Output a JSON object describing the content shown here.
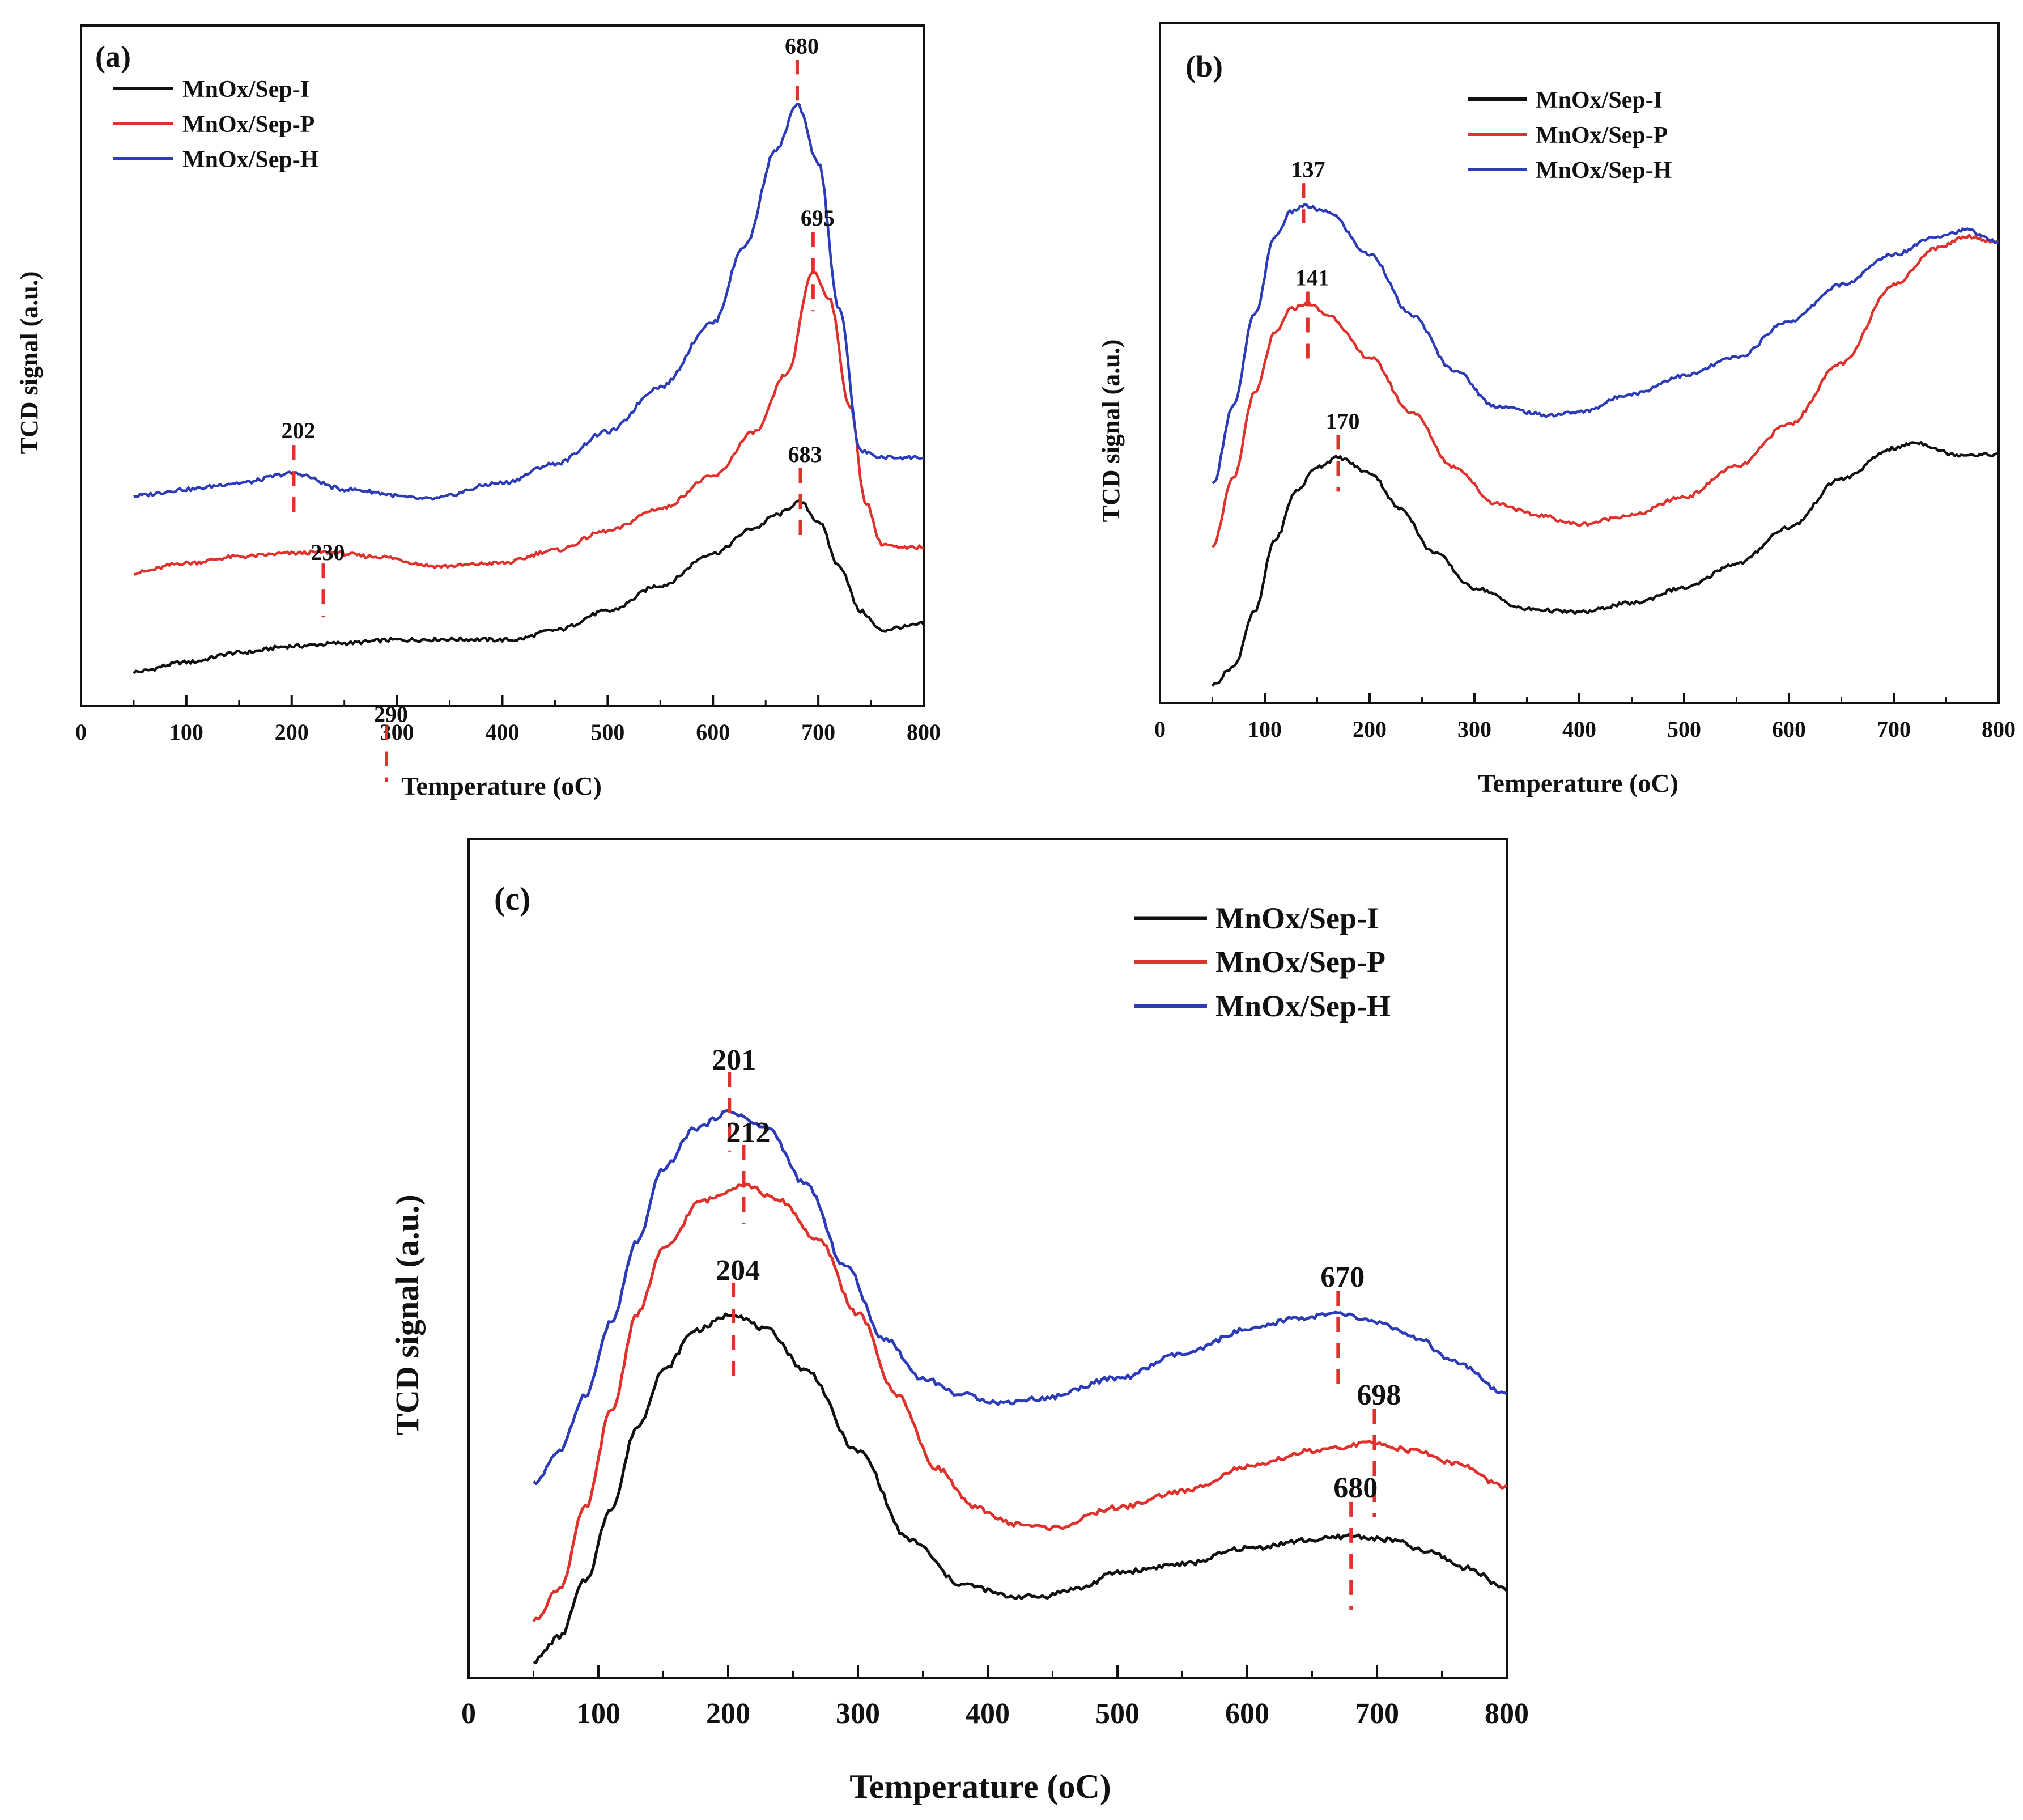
{
  "figure": {
    "background": "#ffffff",
    "marker_color": "#e0322d"
  },
  "legend_entries": [
    "MnOx/Sep-I",
    "MnOx/Sep-P",
    "MnOx/Sep-H"
  ],
  "chart_data": [
    {
      "panel_label": "(a)",
      "type": "line",
      "xlabel": "Temperature (oC)",
      "ylabel": "TCD signal (a.u.)",
      "xlim": [
        0,
        800
      ],
      "ylim": [
        0,
        1
      ],
      "xticks": [
        0,
        100,
        200,
        300,
        400,
        500,
        600,
        700,
        800
      ],
      "legend_position": "top-left",
      "series": [
        {
          "name": "MnOx/Sep-I",
          "color": "#111111",
          "x": [
            50,
            100,
            150,
            200,
            250,
            300,
            350,
            410,
            450,
            500,
            550,
            600,
            640,
            660,
            683,
            700,
            720,
            740,
            760,
            780,
            800
          ],
          "y": [
            0.035,
            0.05,
            0.065,
            0.075,
            0.08,
            0.085,
            0.086,
            0.085,
            0.1,
            0.13,
            0.17,
            0.22,
            0.26,
            0.28,
            0.3,
            0.27,
            0.2,
            0.13,
            0.1,
            0.105,
            0.11
          ]
        },
        {
          "name": "MnOx/Sep-P",
          "color": "#e0322d",
          "x": [
            50,
            100,
            150,
            200,
            230,
            280,
            340,
            400,
            450,
            500,
            550,
            600,
            640,
            670,
            695,
            710,
            730,
            745,
            760,
            780,
            800
          ],
          "y": [
            0.19,
            0.205,
            0.215,
            0.22,
            0.222,
            0.215,
            0.2,
            0.205,
            0.225,
            0.255,
            0.29,
            0.34,
            0.41,
            0.5,
            0.66,
            0.62,
            0.45,
            0.3,
            0.235,
            0.228,
            0.23
          ]
        },
        {
          "name": "MnOx/Sep-H",
          "color": "#2c3cb8",
          "x": [
            50,
            100,
            150,
            202,
            250,
            330,
            400,
            450,
            500,
            550,
            600,
            630,
            660,
            680,
            700,
            720,
            740,
            760,
            780,
            800
          ],
          "y": [
            0.31,
            0.32,
            0.33,
            0.345,
            0.32,
            0.305,
            0.33,
            0.36,
            0.41,
            0.48,
            0.58,
            0.7,
            0.85,
            0.92,
            0.83,
            0.6,
            0.38,
            0.37,
            0.37,
            0.37
          ]
        }
      ],
      "annotations": [
        {
          "label": "680",
          "x": 680,
          "series": "MnOx/Sep-H"
        },
        {
          "label": "695",
          "x": 695,
          "series": "MnOx/Sep-P"
        },
        {
          "label": "202",
          "x": 202,
          "series": "MnOx/Sep-H"
        },
        {
          "label": "683",
          "x": 683,
          "series": "MnOx/Sep-I"
        },
        {
          "label": "230",
          "x": 230,
          "series": "MnOx/Sep-P"
        },
        {
          "label": "290",
          "x": 290,
          "series": "MnOx/Sep-I"
        }
      ]
    },
    {
      "panel_label": "(b)",
      "type": "line",
      "xlabel": "Temperature (oC)",
      "ylabel": "TCD signal (a.u.)",
      "xlim": [
        0,
        800
      ],
      "ylim": [
        0,
        1
      ],
      "xticks": [
        0,
        100,
        200,
        300,
        400,
        500,
        600,
        700,
        800
      ],
      "legend_position": "top-center",
      "series": [
        {
          "name": "MnOx/Sep-I",
          "color": "#111111",
          "x": [
            50,
            70,
            90,
            110,
            130,
            150,
            170,
            200,
            230,
            260,
            300,
            350,
            400,
            450,
            500,
            550,
            600,
            650,
            700,
            720,
            760,
            800
          ],
          "y": [
            0.02,
            0.05,
            0.14,
            0.26,
            0.34,
            0.38,
            0.395,
            0.37,
            0.31,
            0.24,
            0.18,
            0.145,
            0.14,
            0.155,
            0.18,
            0.22,
            0.28,
            0.36,
            0.41,
            0.42,
            0.4,
            0.4
          ]
        },
        {
          "name": "MnOx/Sep-P",
          "color": "#e0322d",
          "x": [
            50,
            70,
            90,
            110,
            125,
            141,
            160,
            200,
            240,
            280,
            320,
            360,
            400,
            450,
            500,
            550,
            600,
            650,
            700,
            740,
            770,
            800
          ],
          "y": [
            0.25,
            0.36,
            0.5,
            0.6,
            0.64,
            0.65,
            0.63,
            0.56,
            0.47,
            0.38,
            0.32,
            0.3,
            0.285,
            0.3,
            0.33,
            0.38,
            0.45,
            0.55,
            0.68,
            0.74,
            0.76,
            0.75
          ]
        },
        {
          "name": "MnOx/Sep-H",
          "color": "#2c3cb8",
          "x": [
            50,
            70,
            90,
            110,
            125,
            137,
            160,
            200,
            240,
            280,
            320,
            370,
            400,
            450,
            500,
            550,
            600,
            650,
            700,
            740,
            770,
            800
          ],
          "y": [
            0.35,
            0.48,
            0.63,
            0.76,
            0.8,
            0.81,
            0.8,
            0.73,
            0.63,
            0.54,
            0.48,
            0.465,
            0.47,
            0.5,
            0.53,
            0.56,
            0.62,
            0.68,
            0.73,
            0.76,
            0.77,
            0.75
          ]
        }
      ],
      "annotations": [
        {
          "label": "137",
          "x": 137,
          "series": "MnOx/Sep-H"
        },
        {
          "label": "141",
          "x": 141,
          "series": "MnOx/Sep-P"
        },
        {
          "label": "170",
          "x": 170,
          "series": "MnOx/Sep-I"
        }
      ]
    },
    {
      "panel_label": "(c)",
      "type": "line",
      "xlabel": "Temperature (oC)",
      "ylabel": "TCD signal (a.u.)",
      "xlim": [
        0,
        800
      ],
      "ylim": [
        0,
        1
      ],
      "xticks": [
        0,
        100,
        200,
        300,
        400,
        500,
        600,
        700,
        800
      ],
      "legend_position": "top-right",
      "series": [
        {
          "name": "MnOx/Sep-I",
          "color": "#111111",
          "x": [
            50,
            70,
            90,
            110,
            130,
            150,
            175,
            204,
            230,
            260,
            300,
            340,
            380,
            420,
            440,
            470,
            500,
            550,
            600,
            650,
            680,
            710,
            740,
            770,
            800
          ],
          "y": [
            0.01,
            0.04,
            0.11,
            0.2,
            0.3,
            0.37,
            0.42,
            0.44,
            0.42,
            0.37,
            0.27,
            0.16,
            0.105,
            0.09,
            0.09,
            0.1,
            0.12,
            0.13,
            0.15,
            0.16,
            0.165,
            0.16,
            0.145,
            0.125,
            0.1
          ]
        },
        {
          "name": "MnOx/Sep-P",
          "color": "#e0322d",
          "x": [
            50,
            70,
            90,
            110,
            130,
            150,
            180,
            212,
            240,
            270,
            300,
            330,
            360,
            390,
            420,
            450,
            500,
            550,
            600,
            650,
            698,
            730,
            760,
            800
          ],
          "y": [
            0.06,
            0.1,
            0.2,
            0.32,
            0.44,
            0.52,
            0.58,
            0.6,
            0.58,
            0.53,
            0.44,
            0.34,
            0.25,
            0.2,
            0.18,
            0.175,
            0.2,
            0.22,
            0.25,
            0.27,
            0.28,
            0.27,
            0.255,
            0.225
          ]
        },
        {
          "name": "MnOx/Sep-H",
          "color": "#2c3cb8",
          "x": [
            50,
            70,
            90,
            110,
            130,
            150,
            175,
            201,
            230,
            260,
            290,
            320,
            350,
            380,
            410,
            440,
            500,
            550,
            600,
            640,
            670,
            700,
            730,
            760,
            800
          ],
          "y": [
            0.23,
            0.27,
            0.34,
            0.43,
            0.53,
            0.62,
            0.67,
            0.69,
            0.67,
            0.6,
            0.5,
            0.41,
            0.36,
            0.34,
            0.33,
            0.335,
            0.36,
            0.39,
            0.42,
            0.435,
            0.44,
            0.43,
            0.41,
            0.38,
            0.34
          ]
        }
      ],
      "annotations": [
        {
          "label": "201",
          "x": 201,
          "series": "MnOx/Sep-H"
        },
        {
          "label": "212",
          "x": 212,
          "series": "MnOx/Sep-P"
        },
        {
          "label": "204",
          "x": 204,
          "series": "MnOx/Sep-I"
        },
        {
          "label": "670",
          "x": 670,
          "series": "MnOx/Sep-H"
        },
        {
          "label": "698",
          "x": 698,
          "series": "MnOx/Sep-P"
        },
        {
          "label": "680",
          "x": 680,
          "series": "MnOx/Sep-I"
        }
      ]
    }
  ]
}
